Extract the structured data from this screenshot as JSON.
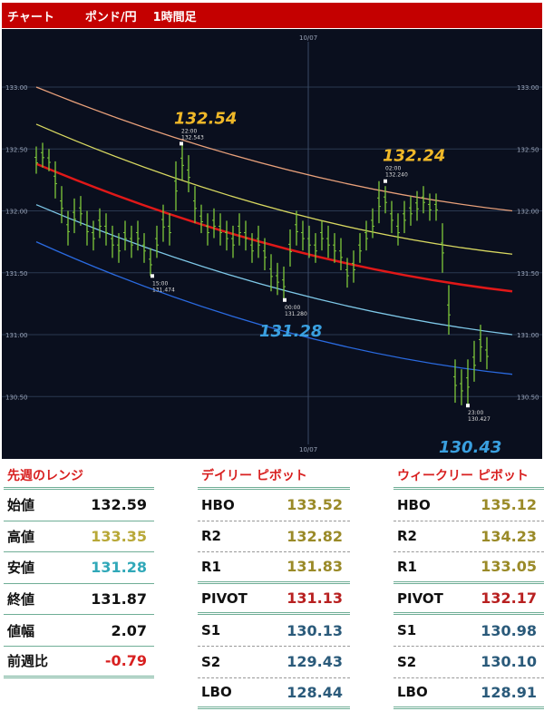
{
  "header": {
    "title": "チャート",
    "pair": "ポンド/円",
    "timeframe": "1時間足"
  },
  "chart_data": {
    "type": "ohlc",
    "ylim": [
      130.2,
      133.35
    ],
    "yticks": [
      "133.00",
      "132.50",
      "132.00",
      "131.50",
      "131.00",
      "130.50"
    ],
    "ytick_values": [
      133.0,
      132.5,
      132.0,
      131.5,
      131.0,
      130.5
    ],
    "date_label": "10/07",
    "colors": {
      "bar": "#7ec83a",
      "orange": "#e8a07a",
      "yellow": "#d8d860",
      "red": "#e01818",
      "lightblue": "#7ec8e8",
      "blue": "#2a6ae0"
    },
    "high": [
      132.52,
      132.55,
      132.5,
      132.4,
      132.2,
      132.0,
      132.1,
      132.12,
      132.0,
      131.92,
      132.02,
      131.98,
      131.88,
      131.82,
      131.92,
      131.88,
      131.92,
      131.82,
      131.7,
      131.88,
      132.05,
      131.98,
      132.4,
      132.543,
      132.45,
      132.2,
      132.05,
      131.98,
      132.02,
      131.98,
      131.92,
      131.88,
      131.98,
      131.92,
      131.82,
      131.88,
      131.78,
      131.65,
      131.58,
      131.55,
      131.85,
      132.0,
      131.92,
      131.88,
      131.82,
      131.92,
      131.88,
      131.82,
      131.78,
      131.62,
      131.68,
      131.82,
      131.92,
      132.02,
      132.24,
      132.2,
      132.08,
      131.98,
      132.08,
      132.12,
      132.16,
      132.2,
      132.14,
      132.14,
      131.9,
      131.4,
      130.8,
      130.72,
      130.8,
      130.95,
      131.08,
      130.98
    ],
    "low": [
      132.3,
      132.35,
      132.32,
      132.1,
      131.9,
      131.72,
      131.82,
      131.88,
      131.72,
      131.68,
      131.78,
      131.72,
      131.62,
      131.58,
      131.68,
      131.62,
      131.68,
      131.58,
      131.474,
      131.62,
      131.75,
      131.72,
      132.0,
      132.25,
      132.15,
      131.9,
      131.82,
      131.72,
      131.78,
      131.72,
      131.68,
      131.62,
      131.72,
      131.68,
      131.58,
      131.62,
      131.52,
      131.35,
      131.32,
      131.28,
      131.55,
      131.72,
      131.68,
      131.62,
      131.58,
      131.68,
      131.62,
      131.58,
      131.52,
      131.38,
      131.42,
      131.58,
      131.68,
      131.78,
      131.9,
      131.98,
      131.82,
      131.72,
      131.82,
      131.88,
      131.92,
      131.98,
      131.92,
      131.92,
      131.5,
      131.0,
      130.45,
      130.43,
      130.427,
      130.62,
      130.78,
      130.72
    ],
    "channel": [
      {
        "color": "orange",
        "start": 133.0,
        "mid": 132.36,
        "end": 132.0
      },
      {
        "color": "yellow",
        "start": 132.7,
        "mid": 132.02,
        "end": 131.65
      },
      {
        "color": "red",
        "start": 132.38,
        "mid": 131.72,
        "end": 131.35
      },
      {
        "color": "lightblue",
        "start": 132.05,
        "mid": 131.38,
        "end": 131.0
      },
      {
        "color": "blue",
        "start": 131.75,
        "mid": 131.05,
        "end": 130.68
      }
    ],
    "annotations": [
      {
        "big": "132.54",
        "time": "22:00",
        "price": "132.543",
        "color": "#f0b828"
      },
      {
        "big": "132.24",
        "time": "02:00",
        "price": "132.240",
        "color": "#f0b828"
      },
      {
        "big": "",
        "time": "15:00",
        "price": "131.474",
        "color": ""
      },
      {
        "big": "131.28",
        "time": "00:00",
        "price": "131.280",
        "color": "#3aa0e0"
      },
      {
        "big": "130.43",
        "time": "23:00",
        "price": "130.427",
        "color": "#3aa0e0"
      }
    ]
  },
  "last_week": {
    "title": "先週のレンジ",
    "rows": [
      {
        "label": "始値",
        "value": "132.59",
        "color": "#111111"
      },
      {
        "label": "高値",
        "value": "133.35",
        "color": "#b8a838"
      },
      {
        "label": "安値",
        "value": "131.28",
        "color": "#30a8b8"
      },
      {
        "label": "終値",
        "value": "131.87",
        "color": "#111111"
      },
      {
        "label": "値幅",
        "value": "2.07",
        "color": "#111111"
      },
      {
        "label": "前週比",
        "value": "-0.79",
        "color": "#d82020"
      }
    ]
  },
  "daily": {
    "title": "デイリー ピボット",
    "rows": [
      {
        "label": "HBO",
        "value": "133.52",
        "color": "#9a8a28"
      },
      {
        "label": "R2",
        "value": "132.82",
        "color": "#9a8a28"
      },
      {
        "label": "R1",
        "value": "131.83",
        "color": "#9a8a28"
      },
      {
        "label": "PIVOT",
        "value": "131.13",
        "color": "#b82020"
      },
      {
        "label": "S1",
        "value": "130.13",
        "color": "#2a5a7a"
      },
      {
        "label": "S2",
        "value": "129.43",
        "color": "#2a5a7a"
      },
      {
        "label": "LBO",
        "value": "128.44",
        "color": "#2a5a7a"
      }
    ]
  },
  "weekly": {
    "title": "ウィークリー ピボット",
    "rows": [
      {
        "label": "HBO",
        "value": "135.12",
        "color": "#9a8a28"
      },
      {
        "label": "R2",
        "value": "134.23",
        "color": "#9a8a28"
      },
      {
        "label": "R1",
        "value": "133.05",
        "color": "#9a8a28"
      },
      {
        "label": "PIVOT",
        "value": "132.17",
        "color": "#b82020"
      },
      {
        "label": "S1",
        "value": "130.98",
        "color": "#2a5a7a"
      },
      {
        "label": "S2",
        "value": "130.10",
        "color": "#2a5a7a"
      },
      {
        "label": "LBO",
        "value": "128.91",
        "color": "#2a5a7a"
      }
    ]
  }
}
